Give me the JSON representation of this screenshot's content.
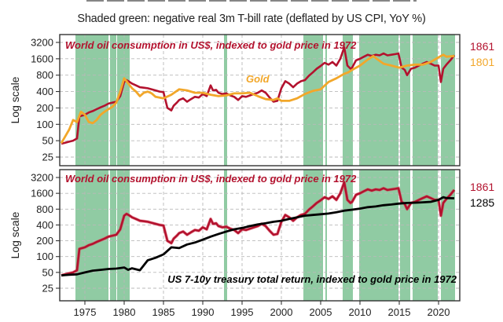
{
  "header": {
    "subtitle": "Shaded green: negative real 3m T-bill rate (deflated by US CPI, YoY %)"
  },
  "colors": {
    "oil": "#b3122e",
    "gold": "#f2a72a",
    "treasury": "#000000",
    "shade": "#7cc293",
    "grid": "#b9b9b9"
  },
  "chart_data": [
    {
      "type": "line",
      "panel": "top",
      "ylabel": "Log scale",
      "yscale": "log2",
      "ylim": [
        20,
        3600
      ],
      "xlim": [
        1971.8,
        2022.7
      ],
      "yticks": [
        25,
        50,
        100,
        200,
        400,
        800,
        1600,
        3200
      ],
      "xticks": [
        1975,
        1980,
        1985,
        1990,
        1995,
        2000,
        2005,
        2010,
        2015,
        2020
      ],
      "grid": true,
      "shaded_periods": [
        [
          1973.8,
          1978.0
        ],
        [
          1978.2,
          1979.0
        ],
        [
          1979.1,
          1980.7
        ],
        [
          1992.7,
          1993.1
        ],
        [
          2002.8,
          2005.3
        ],
        [
          2005.6,
          2005.8
        ],
        [
          2007.8,
          2009.1
        ],
        [
          2009.9,
          2014.9
        ],
        [
          2015.1,
          2016.4
        ],
        [
          2016.7,
          2019.9
        ],
        [
          2020.3,
          2022.1
        ]
      ],
      "annotations": [
        {
          "text": "World oil consumption in US$, indexed to gold price in 1972",
          "color_key": "oil",
          "placement": "top-left"
        },
        {
          "text": "Gold",
          "color_key": "gold",
          "placement": "middle"
        }
      ],
      "end_labels": [
        {
          "text": "1861",
          "color_key": "oil"
        },
        {
          "text": "1801",
          "color_key": "gold"
        }
      ],
      "series": [
        {
          "name": "World oil consumption in US$, indexed to gold price in 1972",
          "color_key": "oil",
          "x": [
            1972.0,
            1972.5,
            1973.0,
            1973.5,
            1974.0,
            1974.3,
            1975.0,
            1975.5,
            1976.0,
            1976.5,
            1977.0,
            1977.5,
            1978.0,
            1978.5,
            1979.0,
            1979.5,
            1980.0,
            1980.3,
            1980.7,
            1981.0,
            1981.5,
            1982.0,
            1982.5,
            1983.0,
            1983.5,
            1984.0,
            1984.5,
            1985.0,
            1985.5,
            1986.0,
            1986.3,
            1986.7,
            1987.0,
            1987.5,
            1988.0,
            1988.5,
            1989.0,
            1989.5,
            1990.0,
            1990.5,
            1991.0,
            1991.3,
            1991.7,
            1992.0,
            1992.5,
            1993.0,
            1993.5,
            1994.0,
            1994.5,
            1995.0,
            1995.5,
            1996.0,
            1996.5,
            1997.0,
            1997.5,
            1998.0,
            1998.5,
            1999.0,
            1999.5,
            2000.0,
            2000.5,
            2001.0,
            2001.5,
            2002.0,
            2002.5,
            2003.0,
            2003.5,
            2004.0,
            2004.5,
            2005.0,
            2005.5,
            2006.0,
            2006.5,
            2007.0,
            2007.5,
            2008.0,
            2008.4,
            2008.8,
            2009.0,
            2009.5,
            2010.0,
            2010.5,
            2011.0,
            2011.5,
            2012.0,
            2012.5,
            2013.0,
            2013.5,
            2014.0,
            2014.5,
            2014.9,
            2015.3,
            2015.7,
            2016.0,
            2016.5,
            2017.0,
            2017.5,
            2018.0,
            2018.5,
            2019.0,
            2019.5,
            2020.0,
            2020.3,
            2020.6,
            2021.0,
            2021.5,
            2022.0
          ],
          "y": [
            44,
            46,
            48,
            50,
            55,
            140,
            150,
            165,
            175,
            190,
            205,
            220,
            240,
            250,
            260,
            330,
            600,
            650,
            600,
            560,
            520,
            480,
            470,
            460,
            440,
            420,
            400,
            390,
            200,
            180,
            220,
            250,
            280,
            300,
            260,
            290,
            320,
            310,
            360,
            330,
            520,
            420,
            430,
            380,
            360,
            370,
            340,
            320,
            280,
            330,
            320,
            340,
            360,
            380,
            420,
            380,
            310,
            260,
            270,
            460,
            620,
            560,
            480,
            560,
            620,
            650,
            780,
            900,
            1050,
            1180,
            1350,
            1250,
            1400,
            1200,
            1600,
            2600,
            1200,
            1050,
            1100,
            1500,
            1600,
            1750,
            1900,
            1800,
            1900,
            1850,
            2000,
            1850,
            1900,
            1950,
            2000,
            1100,
            1000,
            800,
            1050,
            1100,
            1200,
            1300,
            1400,
            1300,
            1200,
            1200,
            600,
            1050,
            1250,
            1500,
            1861
          ]
        },
        {
          "name": "Gold",
          "color_key": "gold",
          "x": [
            1972.0,
            1972.5,
            1973.0,
            1973.5,
            1974.0,
            1974.5,
            1975.0,
            1975.5,
            1976.0,
            1976.5,
            1977.0,
            1977.5,
            1978.0,
            1978.5,
            1979.0,
            1979.5,
            1980.0,
            1980.3,
            1980.7,
            1981.0,
            1981.5,
            1982.0,
            1982.5,
            1983.0,
            1983.5,
            1984.0,
            1985.0,
            1986.0,
            1987.0,
            1988.0,
            1989.0,
            1990.0,
            1991.0,
            1992.0,
            1993.0,
            1994.0,
            1995.0,
            1996.0,
            1997.0,
            1998.0,
            1999.0,
            1999.5,
            2000.0,
            2001.0,
            2002.0,
            2003.0,
            2004.0,
            2005.0,
            2006.0,
            2007.0,
            2008.0,
            2008.5,
            2009.0,
            2010.0,
            2011.0,
            2011.7,
            2012.0,
            2013.0,
            2013.5,
            2014.0,
            2015.0,
            2016.0,
            2017.0,
            2018.0,
            2019.0,
            2020.0,
            2020.6,
            2021.0,
            2022.0
          ],
          "y": [
            45,
            60,
            80,
            120,
            110,
            170,
            150,
            110,
            105,
            120,
            150,
            170,
            190,
            210,
            250,
            400,
            700,
            620,
            520,
            460,
            400,
            330,
            380,
            400,
            370,
            320,
            300,
            350,
            440,
            420,
            380,
            380,
            350,
            330,
            340,
            370,
            370,
            380,
            330,
            290,
            280,
            300,
            270,
            270,
            300,
            360,
            410,
            440,
            600,
            700,
            850,
            900,
            1000,
            1200,
            1550,
            1800,
            1650,
            1300,
            1250,
            1200,
            1100,
            1200,
            1250,
            1250,
            1400,
            1700,
            1900,
            1750,
            1801
          ]
        }
      ]
    },
    {
      "type": "line",
      "panel": "bottom",
      "ylabel": "Log scale",
      "yscale": "log2",
      "ylim": [
        20,
        3600
      ],
      "xlim": [
        1971.8,
        2022.7
      ],
      "yticks": [
        25,
        50,
        100,
        200,
        400,
        800,
        1600,
        3200
      ],
      "xticks": [
        1975,
        1980,
        1985,
        1990,
        1995,
        2000,
        2005,
        2010,
        2015,
        2020
      ],
      "grid": true,
      "shaded_periods": [
        [
          1973.8,
          1978.0
        ],
        [
          1978.2,
          1979.0
        ],
        [
          1979.1,
          1980.7
        ],
        [
          1992.7,
          1993.1
        ],
        [
          2002.8,
          2005.3
        ],
        [
          2005.6,
          2005.8
        ],
        [
          2007.8,
          2009.1
        ],
        [
          2009.9,
          2014.9
        ],
        [
          2015.1,
          2016.4
        ],
        [
          2016.7,
          2019.9
        ],
        [
          2020.3,
          2022.1
        ]
      ],
      "annotations": [
        {
          "text": "World oil consumption in US$, indexed to gold price in 1972",
          "color_key": "oil",
          "placement": "top-left"
        },
        {
          "text": "US 7-10y treasury total return, indexed to gold price in 1972",
          "color_key": "treasury",
          "placement": "bottom-right"
        }
      ],
      "end_labels": [
        {
          "text": "1861",
          "color_key": "oil"
        },
        {
          "text": "1285",
          "color_key": "treasury"
        }
      ],
      "series": [
        {
          "name": "World oil consumption in US$, indexed to gold price in 1972",
          "color_key": "oil",
          "x": [
            1972.0,
            1972.5,
            1973.0,
            1973.5,
            1974.0,
            1974.3,
            1975.0,
            1975.5,
            1976.0,
            1976.5,
            1977.0,
            1977.5,
            1978.0,
            1978.5,
            1979.0,
            1979.5,
            1980.0,
            1980.3,
            1980.7,
            1981.0,
            1981.5,
            1982.0,
            1982.5,
            1983.0,
            1983.5,
            1984.0,
            1984.5,
            1985.0,
            1985.5,
            1986.0,
            1986.3,
            1986.7,
            1987.0,
            1987.5,
            1988.0,
            1988.5,
            1989.0,
            1989.5,
            1990.0,
            1990.5,
            1991.0,
            1991.3,
            1991.7,
            1992.0,
            1992.5,
            1993.0,
            1993.5,
            1994.0,
            1994.5,
            1995.0,
            1995.5,
            1996.0,
            1996.5,
            1997.0,
            1997.5,
            1998.0,
            1998.5,
            1999.0,
            1999.5,
            2000.0,
            2000.5,
            2001.0,
            2001.5,
            2002.0,
            2002.5,
            2003.0,
            2003.5,
            2004.0,
            2004.5,
            2005.0,
            2005.5,
            2006.0,
            2006.5,
            2007.0,
            2007.5,
            2008.0,
            2008.4,
            2008.8,
            2009.0,
            2009.5,
            2010.0,
            2010.5,
            2011.0,
            2011.5,
            2012.0,
            2012.5,
            2013.0,
            2013.5,
            2014.0,
            2014.5,
            2014.9,
            2015.3,
            2015.7,
            2016.0,
            2016.5,
            2017.0,
            2017.5,
            2018.0,
            2018.5,
            2019.0,
            2019.5,
            2020.0,
            2020.3,
            2020.6,
            2021.0,
            2021.5,
            2022.0
          ],
          "y": [
            44,
            46,
            48,
            50,
            55,
            140,
            150,
            165,
            175,
            190,
            205,
            220,
            240,
            250,
            260,
            330,
            600,
            650,
            600,
            560,
            520,
            480,
            470,
            460,
            440,
            420,
            400,
            390,
            200,
            180,
            220,
            250,
            280,
            300,
            260,
            290,
            320,
            310,
            360,
            330,
            520,
            420,
            430,
            380,
            360,
            370,
            340,
            320,
            280,
            330,
            320,
            340,
            360,
            380,
            420,
            380,
            310,
            260,
            270,
            460,
            620,
            560,
            480,
            560,
            620,
            650,
            780,
            900,
            1050,
            1180,
            1350,
            1250,
            1400,
            1200,
            1600,
            2600,
            1200,
            1050,
            1100,
            1500,
            1600,
            1750,
            1900,
            1800,
            1900,
            1850,
            2000,
            1850,
            1900,
            1950,
            2000,
            1100,
            1000,
            800,
            1050,
            1100,
            1200,
            1300,
            1400,
            1300,
            1200,
            1200,
            600,
            1050,
            1250,
            1500,
            1861
          ]
        },
        {
          "name": "US 7-10y treasury total return, indexed to gold price in 1972",
          "color_key": "treasury",
          "x": [
            1972.0,
            1973.0,
            1974.0,
            1975.0,
            1976.0,
            1977.0,
            1978.0,
            1979.0,
            1980.0,
            1980.5,
            1981.0,
            1982.0,
            1983.0,
            1984.0,
            1985.0,
            1986.0,
            1987.0,
            1988.0,
            1989.0,
            1990.0,
            1991.0,
            1992.0,
            1993.0,
            1994.0,
            1995.0,
            1996.0,
            1997.0,
            1998.0,
            1999.0,
            2000.0,
            2001.0,
            2002.0,
            2003.0,
            2004.0,
            2005.0,
            2006.0,
            2007.0,
            2008.0,
            2009.0,
            2010.0,
            2011.0,
            2012.0,
            2013.0,
            2014.0,
            2015.0,
            2016.0,
            2017.0,
            2018.0,
            2019.0,
            2020.0,
            2020.6,
            2021.0,
            2022.0
          ],
          "y": [
            44,
            45,
            46,
            50,
            54,
            56,
            58,
            59,
            62,
            56,
            60,
            55,
            85,
            95,
            110,
            150,
            145,
            170,
            185,
            210,
            240,
            270,
            300,
            330,
            350,
            380,
            410,
            430,
            460,
            480,
            520,
            560,
            600,
            620,
            640,
            660,
            700,
            750,
            780,
            820,
            870,
            900,
            950,
            980,
            1020,
            1050,
            1060,
            1080,
            1100,
            1200,
            1350,
            1300,
            1285
          ]
        }
      ]
    }
  ]
}
